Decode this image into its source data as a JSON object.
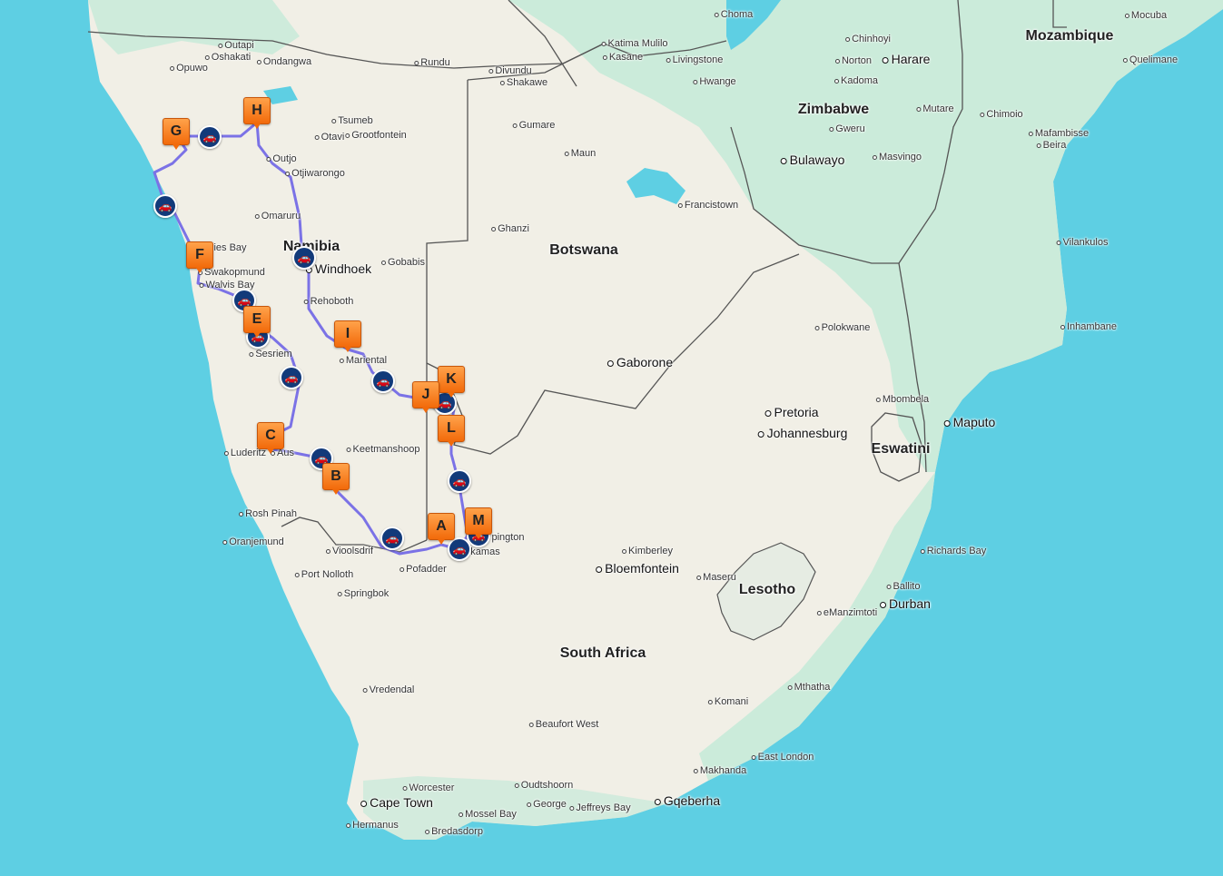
{
  "countries": [
    {
      "id": "mozambique",
      "name": "Mozambique"
    },
    {
      "id": "zimbabwe",
      "name": "Zimbabwe"
    },
    {
      "id": "namibia",
      "name": "Namibia"
    },
    {
      "id": "botswana",
      "name": "Botswana"
    },
    {
      "id": "eswatini",
      "name": "Eswatini"
    },
    {
      "id": "lesotho",
      "name": "Lesotho"
    },
    {
      "id": "south-africa",
      "name": "South Africa"
    }
  ],
  "major_cities": [
    {
      "id": "harare",
      "name": "Harare"
    },
    {
      "id": "windhoek",
      "name": "Windhoek"
    },
    {
      "id": "bulawayo",
      "name": "Bulawayo"
    },
    {
      "id": "gaborone",
      "name": "Gaborone"
    },
    {
      "id": "pretoria",
      "name": "Pretoria"
    },
    {
      "id": "johannesburg",
      "name": "Johannesburg"
    },
    {
      "id": "maputo",
      "name": "Maputo"
    },
    {
      "id": "bloemfontein",
      "name": "Bloemfontein"
    },
    {
      "id": "durban",
      "name": "Durban"
    },
    {
      "id": "cape-town",
      "name": "Cape Town"
    },
    {
      "id": "gqeberha",
      "name": "Gqeberha"
    }
  ],
  "cities": [
    {
      "id": "choma",
      "name": "Choma"
    },
    {
      "id": "mocuba",
      "name": "Mocuba"
    },
    {
      "id": "katima-mulilo",
      "name": "Katima Mulilo"
    },
    {
      "id": "kasane",
      "name": "Kasane"
    },
    {
      "id": "livingstone",
      "name": "Livingstone"
    },
    {
      "id": "chinhoyi",
      "name": "Chinhoyi"
    },
    {
      "id": "norton",
      "name": "Norton"
    },
    {
      "id": "outapi",
      "name": "Outapi"
    },
    {
      "id": "oshakati",
      "name": "Oshakati"
    },
    {
      "id": "ondangwa",
      "name": "Ondangwa"
    },
    {
      "id": "rundu",
      "name": "Rundu"
    },
    {
      "id": "divundu",
      "name": "Divundu"
    },
    {
      "id": "shakawe",
      "name": "Shakawe"
    },
    {
      "id": "hwange",
      "name": "Hwange"
    },
    {
      "id": "kadoma",
      "name": "Kadoma"
    },
    {
      "id": "quelimane",
      "name": "Quelimane"
    },
    {
      "id": "opuwo",
      "name": "Opuwo"
    },
    {
      "id": "tsumeb",
      "name": "Tsumeb"
    },
    {
      "id": "gumare",
      "name": "Gumare"
    },
    {
      "id": "gweru",
      "name": "Gweru"
    },
    {
      "id": "mutare",
      "name": "Mutare"
    },
    {
      "id": "chimoio",
      "name": "Chimoio"
    },
    {
      "id": "grootfontein",
      "name": "Grootfontein"
    },
    {
      "id": "otavi",
      "name": "Otavi"
    },
    {
      "id": "mafambisse",
      "name": "Mafambisse"
    },
    {
      "id": "beira",
      "name": "Beira"
    },
    {
      "id": "maun",
      "name": "Maun"
    },
    {
      "id": "masvingo",
      "name": "Masvingo"
    },
    {
      "id": "outjo",
      "name": "Outjo"
    },
    {
      "id": "otjiwarongo",
      "name": "Otjiwarongo"
    },
    {
      "id": "francistown",
      "name": "Francistown"
    },
    {
      "id": "omaruru",
      "name": "Omaruru"
    },
    {
      "id": "ghanzi",
      "name": "Ghanzi"
    },
    {
      "id": "vilankulos",
      "name": "Vilankulos"
    },
    {
      "id": "henties-bay",
      "name": "ies Bay"
    },
    {
      "id": "gobabis",
      "name": "Gobabis"
    },
    {
      "id": "swakopmund",
      "name": "Swakopmund"
    },
    {
      "id": "walvis-bay",
      "name": "Walvis Bay"
    },
    {
      "id": "rehoboth",
      "name": "Rehoboth"
    },
    {
      "id": "polokwane",
      "name": "Polokwane"
    },
    {
      "id": "inhambane",
      "name": "Inhambane"
    },
    {
      "id": "sesriem",
      "name": "Sesriem"
    },
    {
      "id": "mariental",
      "name": "Mariental"
    },
    {
      "id": "mbombela",
      "name": "Mbombela"
    },
    {
      "id": "keetmanshoop",
      "name": "Keetmanshoop"
    },
    {
      "id": "luderitz",
      "name": "Luderitz"
    },
    {
      "id": "aus",
      "name": "Aus"
    },
    {
      "id": "rosh-pinah",
      "name": "Rosh Pinah"
    },
    {
      "id": "oranjemund",
      "name": "Oranjemund"
    },
    {
      "id": "vioolsdrif",
      "name": "Vioolsdrif"
    },
    {
      "id": "upington",
      "name": "pington"
    },
    {
      "id": "kakamas",
      "name": "kamas"
    },
    {
      "id": "kimberley",
      "name": "Kimberley"
    },
    {
      "id": "richards-bay",
      "name": "Richards Bay"
    },
    {
      "id": "pofadder",
      "name": "Pofadder"
    },
    {
      "id": "port-nolloth",
      "name": "Port Nolloth"
    },
    {
      "id": "maseru",
      "name": "Maseru"
    },
    {
      "id": "ballito",
      "name": "Ballito"
    },
    {
      "id": "springbok",
      "name": "Springbok"
    },
    {
      "id": "emanzimtoti",
      "name": "eManzimtoti"
    },
    {
      "id": "mthatha",
      "name": "Mthatha"
    },
    {
      "id": "vredendal",
      "name": "Vredendal"
    },
    {
      "id": "komani",
      "name": "Komani"
    },
    {
      "id": "beaufort-west",
      "name": "Beaufort West"
    },
    {
      "id": "east-london",
      "name": "East London"
    },
    {
      "id": "makhanda",
      "name": "Makhanda"
    },
    {
      "id": "worcester",
      "name": "Worcester"
    },
    {
      "id": "oudtshoorn",
      "name": "Oudtshoorn"
    },
    {
      "id": "george",
      "name": "George"
    },
    {
      "id": "jeffreys-bay",
      "name": "Jeffreys Bay"
    },
    {
      "id": "mossel-bay",
      "name": "Mossel Bay"
    },
    {
      "id": "hermanus",
      "name": "Hermanus"
    },
    {
      "id": "bredasdorp",
      "name": "Bredasdorp"
    }
  ],
  "route_stops": [
    {
      "id": "A",
      "label": "A"
    },
    {
      "id": "B",
      "label": "B"
    },
    {
      "id": "C",
      "label": "C"
    },
    {
      "id": "E",
      "label": "E"
    },
    {
      "id": "F",
      "label": "F"
    },
    {
      "id": "G",
      "label": "G"
    },
    {
      "id": "H",
      "label": "H"
    },
    {
      "id": "I",
      "label": "I"
    },
    {
      "id": "J",
      "label": "J"
    },
    {
      "id": "K",
      "label": "K"
    },
    {
      "id": "L",
      "label": "L"
    },
    {
      "id": "M",
      "label": "M"
    }
  ],
  "car_markers": 15,
  "colors": {
    "sea": "#5ecfe3",
    "land": "#f1efe6",
    "green": "#c6ead8",
    "route": "#7b72e6",
    "border": "#555555",
    "pin": "#f7831e",
    "car": "#123a7a"
  },
  "icons": {
    "stop": "orange-flag-marker",
    "car": "car-icon"
  }
}
